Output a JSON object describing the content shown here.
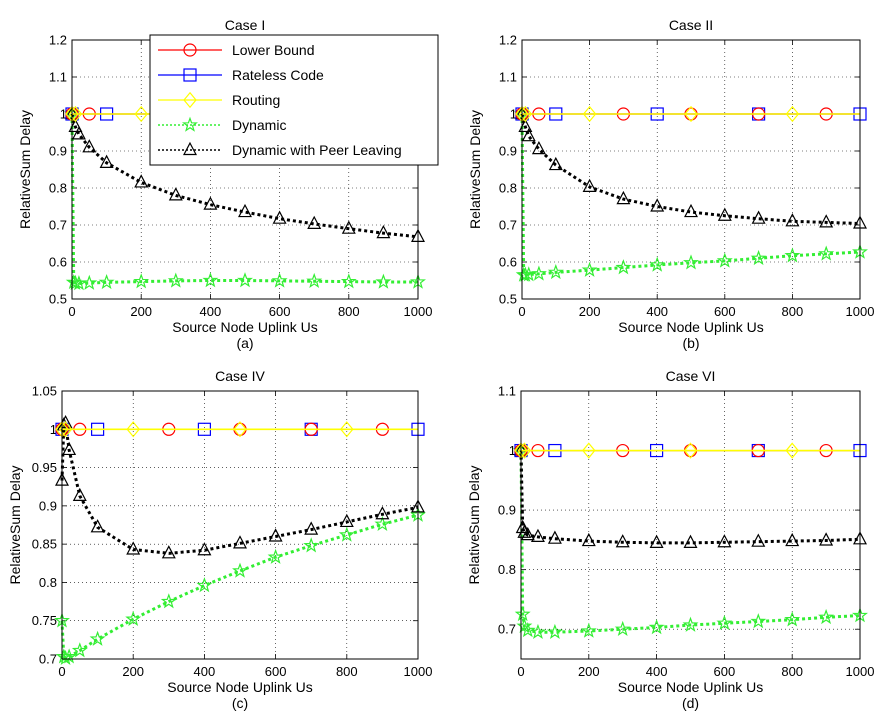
{
  "legend": {
    "entries": [
      {
        "key": "lower",
        "label": "Lower Bound"
      },
      {
        "key": "rateless",
        "label": "Rateless Code"
      },
      {
        "key": "routing",
        "label": "Routing"
      },
      {
        "key": "dynamic",
        "label": "Dynamic"
      },
      {
        "key": "peer",
        "label": "Dynamic with Peer Leaving"
      }
    ]
  },
  "series_style": {
    "lower": {
      "color": "#ff0000",
      "marker": "circle",
      "line": "solid"
    },
    "rateless": {
      "color": "#0000ff",
      "marker": "square",
      "line": "solid"
    },
    "routing": {
      "color": "#ffff00",
      "marker": "diamond",
      "line": "solid"
    },
    "dynamic": {
      "color": "#33ee33",
      "marker": "pentagram",
      "line": "dotted"
    },
    "peer": {
      "color": "#000000",
      "marker": "triangle",
      "line": "dotted"
    }
  },
  "chart_data": [
    {
      "type": "line",
      "title": "Case I",
      "xlabel": "Source Node Uplink Us",
      "ylabel": "RelativeSum Delay",
      "caption": "(a)",
      "xlim": [
        0,
        1000
      ],
      "ylim": [
        0.5,
        1.2
      ],
      "xticks": [
        0,
        200,
        400,
        600,
        800,
        1000
      ],
      "yticks": [
        0.5,
        0.6,
        0.7,
        0.8,
        0.9,
        1,
        1.1,
        1.2
      ],
      "ytick_labels": [
        "0.5",
        "0.6",
        "0.7",
        "0.8",
        "0.9",
        "1",
        "1.1",
        "1.2"
      ],
      "grid": true,
      "legend_position": "top-right",
      "series": [
        {
          "key": "lower",
          "x": [
            0,
            10,
            50,
            100,
            200,
            300,
            400,
            500,
            600,
            700,
            800,
            900,
            1000
          ],
          "y": [
            1,
            1,
            1,
            1,
            1,
            1,
            1,
            1,
            1,
            1,
            1,
            1,
            1
          ]
        },
        {
          "key": "rateless",
          "x": [
            0,
            10,
            50,
            100,
            200,
            300,
            400,
            500,
            600,
            700,
            800,
            900,
            1000
          ],
          "y": [
            1,
            1,
            1,
            1,
            1,
            1,
            1,
            1,
            1,
            1,
            1,
            1,
            1
          ]
        },
        {
          "key": "routing",
          "x": [
            0,
            10,
            50,
            100,
            200,
            300,
            400,
            500,
            600,
            700,
            800,
            900,
            1000
          ],
          "y": [
            1,
            1,
            1,
            1,
            1,
            1,
            1,
            1,
            1,
            1,
            1,
            1,
            1
          ]
        },
        {
          "key": "dynamic",
          "x": [
            0,
            5,
            10,
            20,
            50,
            100,
            200,
            300,
            400,
            500,
            600,
            700,
            800,
            900,
            1000
          ],
          "y": [
            1,
            0.545,
            0.543,
            0.542,
            0.543,
            0.545,
            0.547,
            0.549,
            0.55,
            0.55,
            0.549,
            0.548,
            0.547,
            0.546,
            0.546
          ]
        },
        {
          "key": "peer",
          "x": [
            0,
            10,
            20,
            50,
            100,
            200,
            300,
            400,
            500,
            600,
            700,
            800,
            900,
            1000
          ],
          "y": [
            1,
            0.965,
            0.945,
            0.91,
            0.868,
            0.815,
            0.78,
            0.755,
            0.735,
            0.717,
            0.703,
            0.69,
            0.678,
            0.668
          ]
        }
      ]
    },
    {
      "type": "line",
      "title": "Case II",
      "xlabel": "Source Node Uplink Us",
      "ylabel": "RelativeSum Delay",
      "caption": "(b)",
      "xlim": [
        0,
        1000
      ],
      "ylim": [
        0.5,
        1.2
      ],
      "xticks": [
        0,
        200,
        400,
        600,
        800,
        1000
      ],
      "yticks": [
        0.5,
        0.6,
        0.7,
        0.8,
        0.9,
        1,
        1.1,
        1.2
      ],
      "ytick_labels": [
        "0.5",
        "0.6",
        "0.7",
        "0.8",
        "0.9",
        "1",
        "1.1",
        "1.2"
      ],
      "grid": true,
      "series": [
        {
          "key": "lower",
          "x": [
            0,
            10,
            50,
            100,
            200,
            300,
            400,
            500,
            600,
            700,
            800,
            900,
            1000
          ],
          "y": [
            1,
            1,
            1,
            1,
            1,
            1,
            1,
            1,
            1,
            1,
            1,
            1,
            1
          ]
        },
        {
          "key": "rateless",
          "x": [
            0,
            10,
            50,
            100,
            200,
            300,
            400,
            500,
            600,
            700,
            800,
            900,
            1000
          ],
          "y": [
            1,
            1,
            1,
            1,
            1,
            1,
            1,
            1,
            1,
            1,
            1,
            1,
            1
          ]
        },
        {
          "key": "routing",
          "x": [
            0,
            10,
            50,
            100,
            200,
            300,
            400,
            500,
            600,
            700,
            800,
            900,
            1000
          ],
          "y": [
            1,
            1,
            1,
            1,
            1,
            1,
            1,
            1,
            1,
            1,
            1,
            1,
            1
          ]
        },
        {
          "key": "dynamic",
          "x": [
            0,
            5,
            10,
            20,
            50,
            100,
            200,
            300,
            400,
            500,
            600,
            700,
            800,
            900,
            1000
          ],
          "y": [
            1,
            0.565,
            0.565,
            0.566,
            0.568,
            0.572,
            0.578,
            0.585,
            0.592,
            0.598,
            0.603,
            0.61,
            0.617,
            0.622,
            0.627
          ]
        },
        {
          "key": "peer",
          "x": [
            0,
            10,
            20,
            50,
            100,
            200,
            300,
            400,
            500,
            600,
            700,
            800,
            900,
            1000
          ],
          "y": [
            1,
            0.965,
            0.94,
            0.905,
            0.862,
            0.803,
            0.77,
            0.75,
            0.735,
            0.725,
            0.717,
            0.71,
            0.707,
            0.704
          ]
        }
      ]
    },
    {
      "type": "line",
      "title": "Case IV",
      "xlabel": "Source Node Uplink Us",
      "ylabel": "RelativeSum Delay",
      "caption": "(c)",
      "xlim": [
        0,
        1000
      ],
      "ylim": [
        0.7,
        1.05
      ],
      "xticks": [
        0,
        200,
        400,
        600,
        800,
        1000
      ],
      "yticks": [
        0.7,
        0.75,
        0.8,
        0.85,
        0.9,
        0.95,
        1,
        1.05
      ],
      "ytick_labels": [
        "0.7",
        "0.75",
        "0.8",
        "0.85",
        "0.9",
        "0.95",
        "1",
        "1.05"
      ],
      "grid": true,
      "series": [
        {
          "key": "lower",
          "x": [
            0,
            10,
            50,
            100,
            200,
            300,
            400,
            500,
            600,
            700,
            800,
            900,
            1000
          ],
          "y": [
            1,
            1,
            1,
            1,
            1,
            1,
            1,
            1,
            1,
            1,
            1,
            1,
            1
          ]
        },
        {
          "key": "rateless",
          "x": [
            0,
            10,
            50,
            100,
            200,
            300,
            400,
            500,
            600,
            700,
            800,
            900,
            1000
          ],
          "y": [
            1,
            1,
            1,
            1,
            1,
            1,
            1,
            1,
            1,
            1,
            1,
            1,
            1
          ]
        },
        {
          "key": "routing",
          "x": [
            0,
            10,
            50,
            100,
            200,
            300,
            400,
            500,
            600,
            700,
            800,
            900,
            1000
          ],
          "y": [
            1,
            1,
            1,
            1,
            1,
            1,
            1,
            1,
            1,
            1,
            1,
            1,
            1
          ]
        },
        {
          "key": "dynamic",
          "x": [
            0,
            5,
            10,
            20,
            50,
            100,
            200,
            300,
            400,
            500,
            600,
            700,
            800,
            900,
            1000
          ],
          "y": [
            0.75,
            0.703,
            0.701,
            0.703,
            0.711,
            0.726,
            0.752,
            0.775,
            0.796,
            0.815,
            0.833,
            0.848,
            0.862,
            0.876,
            0.888
          ]
        },
        {
          "key": "peer",
          "x": [
            0,
            5,
            10,
            20,
            50,
            100,
            200,
            300,
            400,
            500,
            600,
            700,
            800,
            900,
            1000
          ],
          "y": [
            0.933,
            1.005,
            1.008,
            0.973,
            0.913,
            0.872,
            0.843,
            0.838,
            0.842,
            0.851,
            0.86,
            0.869,
            0.879,
            0.889,
            0.898
          ]
        }
      ]
    },
    {
      "type": "line",
      "title": "Case VI",
      "xlabel": "Source Node Uplink Us",
      "ylabel": "RelativeSum Delay",
      "caption": "(d)",
      "xlim": [
        0,
        1000
      ],
      "ylim": [
        0.65,
        1.1
      ],
      "xticks": [
        0,
        200,
        400,
        600,
        800,
        1000
      ],
      "yticks": [
        0.7,
        0.8,
        0.9,
        1,
        1.1
      ],
      "ytick_labels": [
        "0.7",
        "0.8",
        "0.9",
        "1",
        "1.1"
      ],
      "grid": true,
      "series": [
        {
          "key": "lower",
          "x": [
            0,
            10,
            50,
            100,
            200,
            300,
            400,
            500,
            600,
            700,
            800,
            900,
            1000
          ],
          "y": [
            1,
            1,
            1,
            1,
            1,
            1,
            1,
            1,
            1,
            1,
            1,
            1,
            1
          ]
        },
        {
          "key": "rateless",
          "x": [
            0,
            10,
            50,
            100,
            200,
            300,
            400,
            500,
            600,
            700,
            800,
            900,
            1000
          ],
          "y": [
            1,
            1,
            1,
            1,
            1,
            1,
            1,
            1,
            1,
            1,
            1,
            1,
            1
          ]
        },
        {
          "key": "routing",
          "x": [
            0,
            10,
            50,
            100,
            200,
            300,
            400,
            500,
            600,
            700,
            800,
            900,
            1000
          ],
          "y": [
            1,
            1,
            1,
            1,
            1,
            1,
            1,
            1,
            1,
            1,
            1,
            1,
            1
          ]
        },
        {
          "key": "dynamic",
          "x": [
            0,
            5,
            10,
            20,
            50,
            100,
            200,
            300,
            400,
            500,
            600,
            700,
            800,
            900,
            1000
          ],
          "y": [
            1,
            0.725,
            0.705,
            0.698,
            0.695,
            0.695,
            0.697,
            0.7,
            0.703,
            0.707,
            0.71,
            0.713,
            0.716,
            0.72,
            0.723
          ]
        },
        {
          "key": "peer",
          "x": [
            0,
            5,
            10,
            20,
            50,
            100,
            200,
            300,
            400,
            500,
            600,
            700,
            800,
            900,
            1000
          ],
          "y": [
            1,
            0.87,
            0.862,
            0.858,
            0.855,
            0.852,
            0.848,
            0.846,
            0.845,
            0.845,
            0.846,
            0.847,
            0.848,
            0.849,
            0.851
          ]
        }
      ]
    }
  ]
}
